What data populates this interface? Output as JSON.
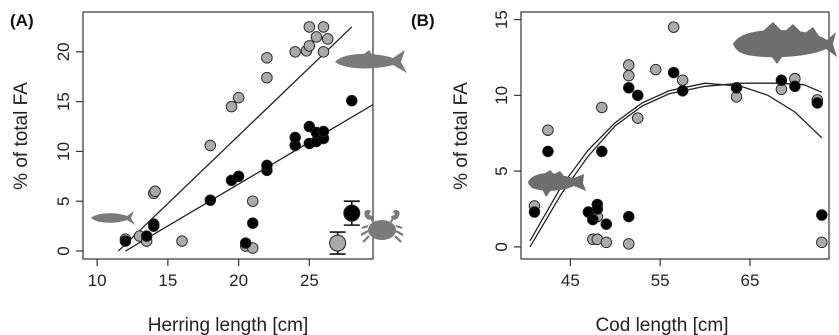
{
  "chart_data": [
    {
      "panel_label": "(A)",
      "type": "scatter",
      "xlabel": "Herring length [cm]",
      "ylabel": "% of total FA",
      "xlim": [
        9,
        29.5
      ],
      "ylim": [
        -0.8,
        24
      ],
      "xticks": [
        "10",
        "15",
        "20",
        "25"
      ],
      "yticks": [
        "0",
        "5",
        "10",
        "15",
        "20"
      ],
      "series": [
        {
          "color": "#aaaaaa",
          "fit": "linear",
          "fit_line": [
            [
              11.5,
              0
            ],
            [
              28,
              22.5
            ]
          ],
          "points": [
            [
              12,
              1.2
            ],
            [
              13,
              1.5
            ],
            [
              13.5,
              1.0
            ],
            [
              14,
              5.8
            ],
            [
              14.1,
              6.0
            ],
            [
              16,
              1.0
            ],
            [
              18,
              10.6
            ],
            [
              19.5,
              14.5
            ],
            [
              20,
              15.4
            ],
            [
              20.5,
              0.5
            ],
            [
              21,
              0.3
            ],
            [
              21,
              5.0
            ],
            [
              22,
              17.4
            ],
            [
              22,
              19.4
            ],
            [
              24,
              20.0
            ],
            [
              24.8,
              20.1
            ],
            [
              25,
              22.5
            ],
            [
              25,
              20.6
            ],
            [
              25.5,
              21.5
            ],
            [
              26,
              22.5
            ],
            [
              26,
              20.0
            ],
            [
              26.3,
              21.3
            ]
          ]
        },
        {
          "color": "#000000",
          "fit": "linear",
          "fit_line": [
            [
              12,
              0
            ],
            [
              29.5,
              14.7
            ]
          ],
          "points": [
            [
              12,
              1.0
            ],
            [
              13.5,
              1.5
            ],
            [
              14,
              2.7
            ],
            [
              14,
              2.5
            ],
            [
              18,
              5.1
            ],
            [
              19.5,
              7.1
            ],
            [
              20,
              7.5
            ],
            [
              20.5,
              0.8
            ],
            [
              21,
              2.8
            ],
            [
              22,
              8.1
            ],
            [
              22,
              8.6
            ],
            [
              24,
              10.6
            ],
            [
              24,
              11.4
            ],
            [
              25,
              10.8
            ],
            [
              25,
              12.5
            ],
            [
              25.5,
              11.0
            ],
            [
              25.5,
              11.9
            ],
            [
              26,
              11.3
            ],
            [
              26,
              12.0
            ],
            [
              28,
              15.1
            ]
          ]
        }
      ],
      "mean_points": [
        {
          "color": "#aaaaaa",
          "x": 27,
          "y": 0.8,
          "err": 1.1
        },
        {
          "color": "#000000",
          "x": 28,
          "y": 3.8,
          "err": 1.2
        }
      ],
      "silhouettes": [
        "herring-icon",
        "small-fish-icon",
        "crab-icon"
      ]
    },
    {
      "panel_label": "(B)",
      "type": "scatter",
      "xlabel": "Cod length [cm]",
      "ylabel": "% of total FA",
      "xlim": [
        39.5,
        73.8
      ],
      "ylim": [
        -0.8,
        15.5
      ],
      "xticks": [
        "45",
        "55",
        "65"
      ],
      "yticks": [
        "0",
        "5",
        "10",
        "15"
      ],
      "series": [
        {
          "color": "#aaaaaa",
          "fit": "curve",
          "points": [
            [
              41,
              2.7
            ],
            [
              42.5,
              7.7
            ],
            [
              47.5,
              0.5
            ],
            [
              48,
              0.5
            ],
            [
              48,
              2.0
            ],
            [
              48.5,
              9.2
            ],
            [
              49,
              0.3
            ],
            [
              51.5,
              0.2
            ],
            [
              51.5,
              11.3
            ],
            [
              51.5,
              12.0
            ],
            [
              52.5,
              8.5
            ],
            [
              54.5,
              11.7
            ],
            [
              56.5,
              14.5
            ],
            [
              57.5,
              11.0
            ],
            [
              63.5,
              9.9
            ],
            [
              68.5,
              10.4
            ],
            [
              70,
              11.1
            ],
            [
              72.5,
              9.7
            ],
            [
              73,
              0.3
            ]
          ]
        },
        {
          "color": "#000000",
          "fit": "curve",
          "points": [
            [
              41,
              2.3
            ],
            [
              42.5,
              6.3
            ],
            [
              47,
              2.3
            ],
            [
              47.5,
              1.8
            ],
            [
              48,
              2.8
            ],
            [
              48,
              2.5
            ],
            [
              48.5,
              6.3
            ],
            [
              49,
              1.5
            ],
            [
              51.5,
              2.0
            ],
            [
              51.5,
              10.5
            ],
            [
              52.5,
              10.0
            ],
            [
              56.5,
              11.5
            ],
            [
              57.5,
              10.3
            ],
            [
              63.5,
              10.5
            ],
            [
              68.5,
              11.0
            ],
            [
              70,
              10.6
            ],
            [
              72.5,
              9.5
            ],
            [
              73,
              2.1
            ]
          ],
          "curve": [
            [
              40.5,
              0
            ],
            [
              44,
              3.5
            ],
            [
              47,
              6.0
            ],
            [
              50,
              8.0
            ],
            [
              53,
              9.3
            ],
            [
              56,
              10.1
            ],
            [
              60,
              10.6
            ],
            [
              64,
              10.8
            ],
            [
              68,
              10.8
            ],
            [
              71,
              10.7
            ],
            [
              73,
              10.2
            ]
          ]
        }
      ],
      "alt_curve": [
        [
          40.5,
          0.4
        ],
        [
          44,
          4.0
        ],
        [
          47,
          6.4
        ],
        [
          50,
          8.2
        ],
        [
          53,
          9.5
        ],
        [
          56,
          10.3
        ],
        [
          60,
          10.8
        ],
        [
          64,
          10.6
        ],
        [
          67,
          10.0
        ],
        [
          70,
          8.9
        ],
        [
          73,
          7.2
        ]
      ],
      "silhouettes": [
        "cod-icon",
        "sculpin-icon"
      ]
    }
  ]
}
